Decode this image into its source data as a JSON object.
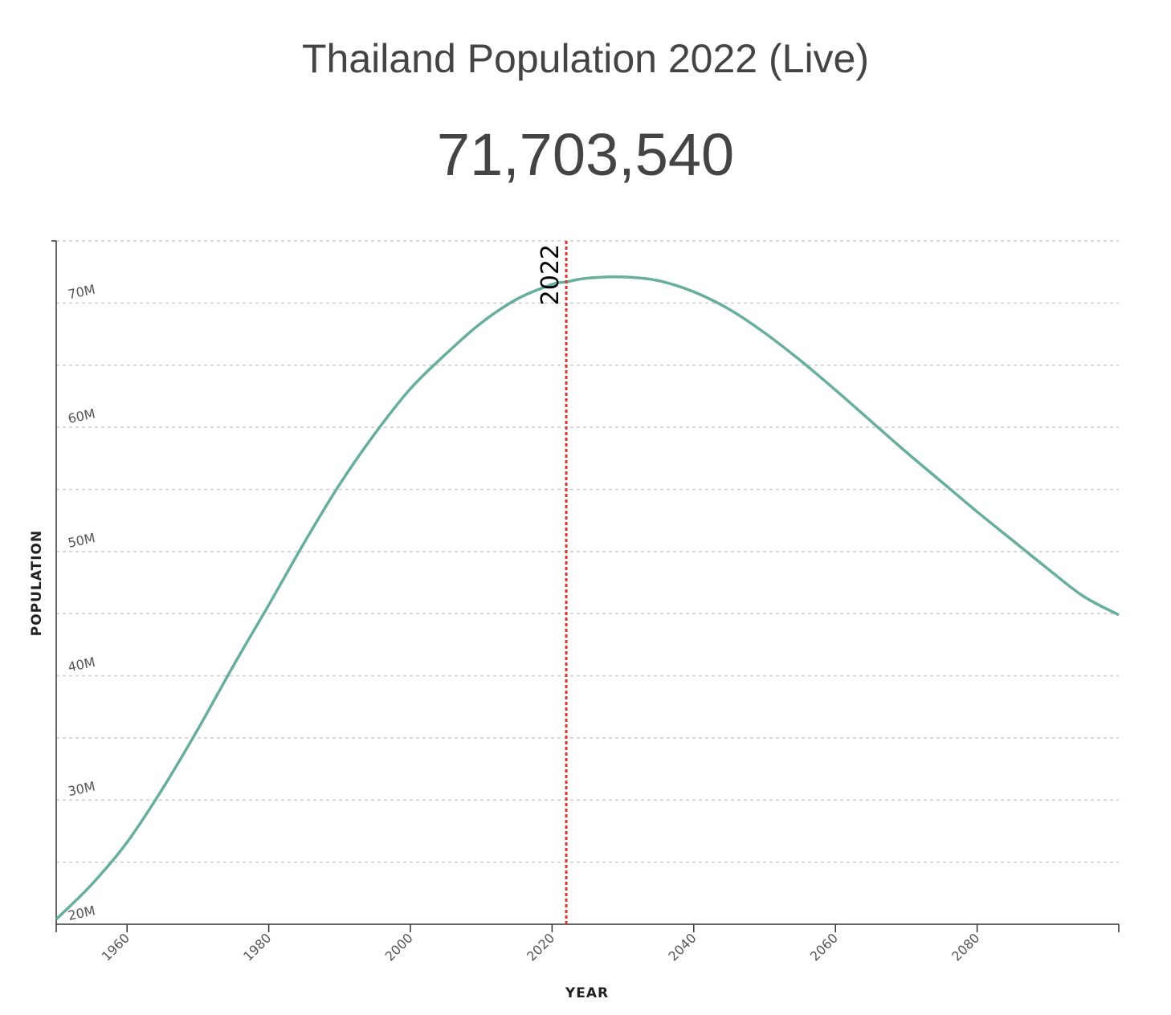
{
  "header": {
    "title": "Thailand Population 2022 (Live)",
    "counter": "71,703,540"
  },
  "colors": {
    "line": "#67ae9e",
    "marker": "#e03030",
    "grid": "#cccccc",
    "axis": "#333333",
    "text": "#444444"
  },
  "chart_data": {
    "type": "line",
    "title": "Thailand Population 2022 (Live)",
    "xlabel": "YEAR",
    "ylabel": "POPULATION",
    "xlim": [
      1950,
      2100
    ],
    "ylim": [
      20000000,
      75000000
    ],
    "x_ticks": [
      1960,
      1980,
      2000,
      2020,
      2040,
      2060,
      2080
    ],
    "y_ticks": [
      20000000,
      30000000,
      40000000,
      50000000,
      60000000,
      70000000
    ],
    "y_tick_labels": [
      "20M",
      "30M",
      "40M",
      "50M",
      "60M",
      "70M"
    ],
    "grid": true,
    "marker_year": 2022,
    "marker_label": "2022",
    "series": [
      {
        "x": [
          1950,
          1955,
          1960,
          1965,
          1970,
          1975,
          1980,
          1985,
          1990,
          1995,
          2000,
          2005,
          2010,
          2015,
          2020,
          2022,
          2025,
          2030,
          2035,
          2040,
          2045,
          2050,
          2055,
          2060,
          2065,
          2070,
          2075,
          2080,
          2085,
          2090,
          2095,
          2100
        ],
        "values": [
          20400000,
          23200000,
          26600000,
          30900000,
          35700000,
          40800000,
          45700000,
          50700000,
          55400000,
          59500000,
          63100000,
          65900000,
          68400000,
          70300000,
          71500000,
          71700000,
          72000000,
          72100000,
          71800000,
          70900000,
          69500000,
          67600000,
          65400000,
          63000000,
          60500000,
          58000000,
          55600000,
          53200000,
          50900000,
          48600000,
          46400000,
          44900000
        ]
      }
    ]
  }
}
